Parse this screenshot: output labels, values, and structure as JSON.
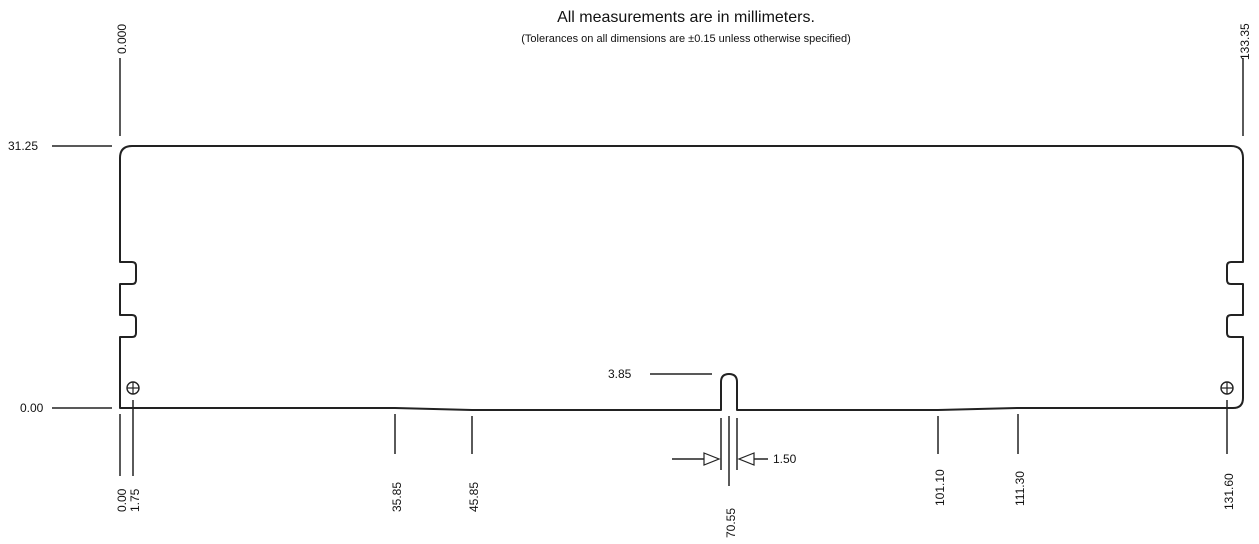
{
  "header": {
    "title": "All measurements are in millimeters.",
    "subtitle": "(Tolerances on all dimensions are ±0.15 unless otherwise specified)"
  },
  "dimensions": {
    "top_left": "0.000",
    "top_right": "133.35",
    "height_top": "31.25",
    "height_base": "0.00",
    "notch_depth": "3.85",
    "notch_width": "1.50",
    "bottom": [
      "0.00",
      "1.75",
      "35.85",
      "45.85",
      "70.55",
      "101.10",
      "111.30",
      "131.60"
    ]
  }
}
